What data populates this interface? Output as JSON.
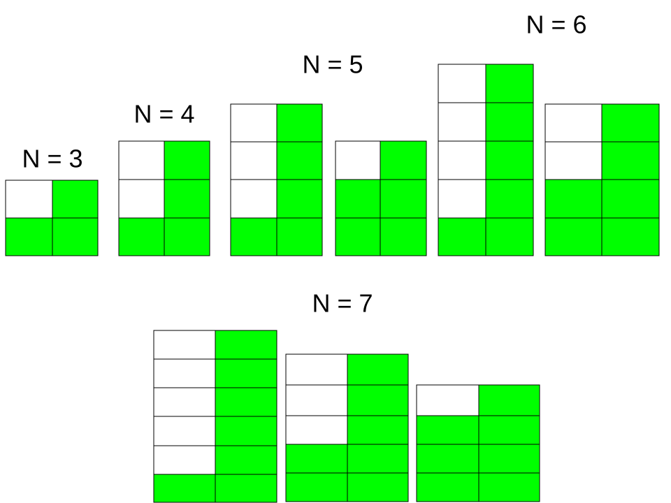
{
  "labels": [
    "N = 3",
    "N = 4",
    "N = 5",
    "N = 6",
    "N = 7"
  ]
}
